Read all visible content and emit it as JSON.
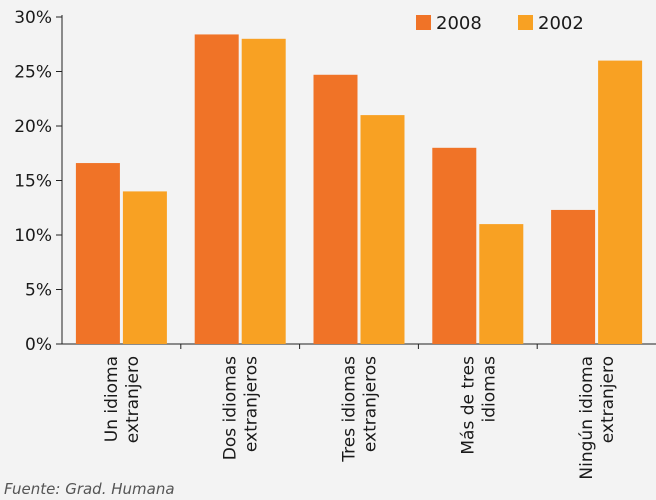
{
  "chart_data": {
    "type": "bar",
    "categories": [
      [
        "Un idioma",
        "extranjero"
      ],
      [
        "Dos idiomas",
        "extranjeros"
      ],
      [
        "Tres idiomas",
        "extranjeros"
      ],
      [
        "Más de tres",
        "idiomas"
      ],
      [
        "Ningún idioma",
        "extranjero"
      ]
    ],
    "series": [
      {
        "name": "2008",
        "values": [
          16.6,
          28.4,
          24.7,
          18.0,
          12.3
        ],
        "color": "#f07327"
      },
      {
        "name": "2002",
        "values": [
          14.0,
          28.0,
          21.0,
          11.0,
          26.0
        ],
        "color": "#f8a123"
      }
    ],
    "yticks": [
      0,
      5,
      10,
      15,
      20,
      25,
      30
    ],
    "ytick_labels": [
      "0%",
      "5%",
      "10%",
      "15%",
      "20%",
      "25%",
      "30%"
    ],
    "ylim": [
      0,
      30
    ],
    "legend_position": "top-right",
    "grid": false
  },
  "source_note": "Fuente: Grad. Humana"
}
